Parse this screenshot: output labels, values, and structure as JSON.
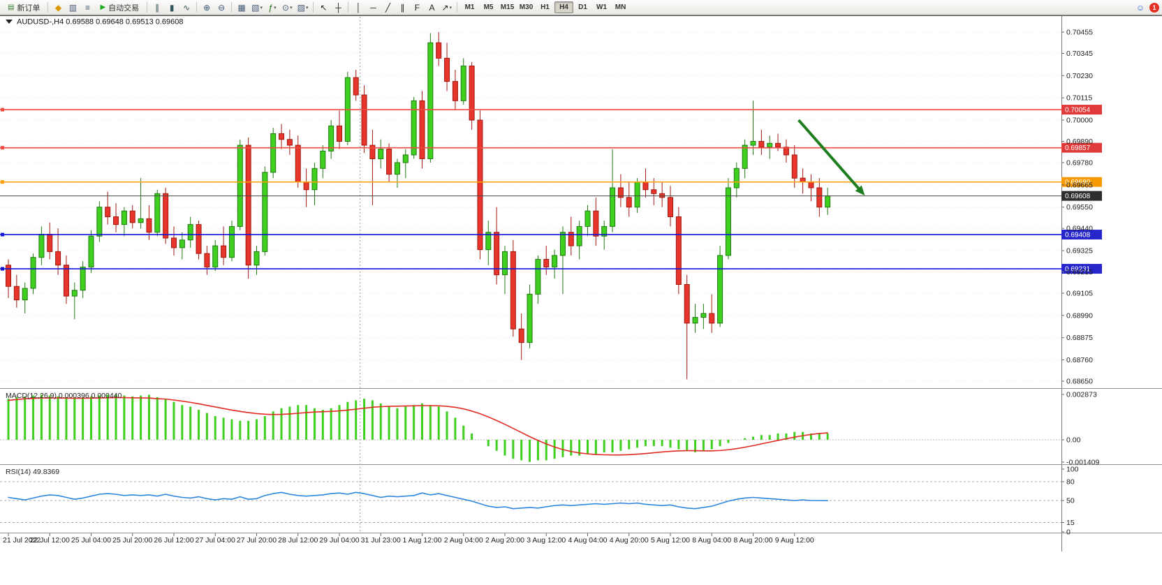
{
  "toolbar": {
    "new_order_label": "新订单",
    "auto_trading_label": "自动交易",
    "timeframes": [
      "M1",
      "M5",
      "M15",
      "M30",
      "H1",
      "H4",
      "D1",
      "W1",
      "MN"
    ],
    "active_timeframe": "H4",
    "notification_count": "1",
    "items": [
      {
        "kind": "button",
        "name": "new-order-button",
        "glyph": "▤",
        "glyph_color": "#2f7d32",
        "label_key": "new_order_label"
      },
      {
        "kind": "sep"
      },
      {
        "kind": "icon",
        "name": "metaeditor-icon",
        "glyph": "◆",
        "glyph_color": "#d99700"
      },
      {
        "kind": "icon",
        "name": "data-window-icon",
        "glyph": "▥",
        "glyph_color": "#445a7a"
      },
      {
        "kind": "icon",
        "name": "navigator-icon",
        "glyph": "≡",
        "glyph_color": "#445a7a"
      },
      {
        "kind": "button",
        "name": "auto-trading-button",
        "glyph": "▶",
        "glyph_color": "#1faa1f",
        "label_key": "auto_trading_label"
      },
      {
        "kind": "sep"
      },
      {
        "kind": "icon",
        "name": "bar-chart-icon",
        "glyph": "∥",
        "glyph_color": "#33555f"
      },
      {
        "kind": "icon",
        "name": "candlestick-chart-icon",
        "glyph": "▮",
        "glyph_color": "#33555f"
      },
      {
        "kind": "icon",
        "name": "line-chart-icon",
        "glyph": "∿",
        "glyph_color": "#33555f"
      },
      {
        "kind": "sep"
      },
      {
        "kind": "icon",
        "name": "zoom-in-icon",
        "glyph": "⊕",
        "glyph_color": "#34567a"
      },
      {
        "kind": "icon",
        "name": "zoom-out-icon",
        "glyph": "⊖",
        "glyph_color": "#34567a"
      },
      {
        "kind": "sep"
      },
      {
        "kind": "icon",
        "name": "tile-windows-icon",
        "glyph": "▦",
        "glyph_color": "#445a7a"
      },
      {
        "kind": "icon",
        "name": "new-chart-icon",
        "glyph": "▧",
        "caret": true,
        "glyph_color": "#445a7a"
      },
      {
        "kind": "icon",
        "name": "indicators-icon",
        "glyph": "ƒ",
        "caret": true,
        "glyph_color": "#156915"
      },
      {
        "kind": "icon",
        "name": "periods-icon",
        "glyph": "⊙",
        "caret": true,
        "glyph_color": "#445a7a"
      },
      {
        "kind": "icon",
        "name": "templates-icon",
        "glyph": "▨",
        "caret": true,
        "glyph_color": "#445a7a"
      },
      {
        "kind": "sep"
      },
      {
        "kind": "icon",
        "name": "cursor-icon",
        "glyph": "↖",
        "glyph_color": "#222222"
      },
      {
        "kind": "icon",
        "name": "crosshair-icon",
        "glyph": "┼",
        "glyph_color": "#222222"
      },
      {
        "kind": "sep"
      },
      {
        "kind": "icon",
        "name": "vertical-line-icon",
        "glyph": "│",
        "glyph_color": "#222222"
      },
      {
        "kind": "icon",
        "name": "horizontal-line-icon",
        "glyph": "─",
        "glyph_color": "#222222"
      },
      {
        "kind": "icon",
        "name": "trendline-icon",
        "glyph": "╱",
        "glyph_color": "#222222"
      },
      {
        "kind": "icon",
        "name": "channel-icon",
        "glyph": "∥",
        "glyph_color": "#222222"
      },
      {
        "kind": "icon",
        "name": "fibonacci-icon",
        "glyph": "F",
        "glyph_color": "#222222"
      },
      {
        "kind": "icon",
        "name": "text-icon",
        "glyph": "A",
        "glyph_color": "#222222"
      },
      {
        "kind": "icon",
        "name": "arrows-icon",
        "glyph": "↗",
        "caret": true,
        "glyph_color": "#222222"
      },
      {
        "kind": "sep"
      },
      {
        "kind": "tf-group"
      },
      {
        "kind": "spacer"
      },
      {
        "kind": "icon",
        "name": "community-icon",
        "glyph": "☺",
        "glyph_color": "#2a6fd1"
      },
      {
        "kind": "badge",
        "name": "notification-badge"
      }
    ]
  },
  "header": {
    "symbol_period": "AUDUSD-,H4",
    "open": "0.69588",
    "high": "0.69648",
    "low": "0.69513",
    "close": "0.69608"
  },
  "price_scale": [
    "0.70455",
    "0.70345",
    "0.70230",
    "0.70115",
    "0.70000",
    "0.69890",
    "0.69780",
    "0.69665",
    "0.69550",
    "0.69440",
    "0.69325",
    "0.69215",
    "0.69105",
    "0.68990",
    "0.68875",
    "0.68760",
    "0.68650"
  ],
  "time_scale": [
    "21 Jul 2022",
    "22 Jul 12:00",
    "25 Jul 04:00",
    "25 Jul 20:00",
    "26 Jul 12:00",
    "27 Jul 04:00",
    "27 Jul 20:00",
    "28 Jul 12:00",
    "29 Jul 04:00",
    "31 Jul 23:00",
    "1 Aug 12:00",
    "2 Aug 04:00",
    "2 Aug 20:00",
    "3 Aug 12:00",
    "4 Aug 04:00",
    "4 Aug 20:00",
    "5 Aug 12:00",
    "8 Aug 04:00",
    "8 Aug 20:00",
    "9 Aug 12:00"
  ],
  "levels": [
    {
      "price": 0.70054,
      "label": "0.70054",
      "line": "#f14a42",
      "badge": "#e03a3a",
      "name": "resistance-line-1"
    },
    {
      "price": 0.69857,
      "label": "0.69857",
      "line": "#f14a42",
      "badge": "#e03a3a",
      "name": "resistance-line-2"
    },
    {
      "price": 0.6968,
      "label": "0.69680",
      "line": "#ffa000",
      "badge": "#f59a00",
      "name": "pivot-line"
    },
    {
      "price": 0.69408,
      "label": "0.69408",
      "line": "#1414d8",
      "badge": "#2626cc",
      "name": "support-line-1"
    },
    {
      "price": 0.69231,
      "label": "0.69231",
      "line": "#1414d8",
      "badge": "#2626cc",
      "name": "support-line-2"
    }
  ],
  "current_price": {
    "value": 0.69608,
    "label": "0.69608",
    "line": "#444444",
    "badge": "#2e2e2e"
  },
  "indicators": {
    "macd": {
      "title": "MACD(12,26,9)",
      "value_main": "0.000396",
      "value_signal": "0.000440",
      "scale": [
        "0.002873",
        "0.00",
        "-0.001409"
      ]
    },
    "rsi": {
      "title": "RSI(14)",
      "value": "49.8369",
      "scale": [
        "100",
        "80",
        "50",
        "15",
        "0"
      ],
      "levels": [
        80,
        50,
        15
      ]
    }
  },
  "annotations": {
    "trend_arrow": {
      "color": "#1e7d1e",
      "from_index": 95.5,
      "from_price": 0.7,
      "to_index": 103.5,
      "to_price": 0.6961
    }
  },
  "theme": {
    "bull": "#3fcf1f",
    "bull_edge": "#1f7a10",
    "bear": "#e8352b",
    "bear_edge": "#a01810",
    "macd_hist": "#3fcf1f",
    "macd_signal": "#e02a20",
    "rsi_line": "#2e86de",
    "grid": "#ececec",
    "scale_text": "#1c1c1c",
    "panel_border": "#909090",
    "day_separator": "#9a9a9a"
  },
  "chart_data": {
    "type": "candlestick",
    "symbol": "AUDUSD",
    "timeframe": "H4",
    "title": "AUDUSD-,H4 0.69588 0.69648 0.69513 0.69608",
    "y_axis_range": [
      0.68614,
      0.70534
    ],
    "grid": true,
    "day_separator_index": 42.5,
    "time_labels_every": 5,
    "candles": [
      [
        0.6925,
        0.6928,
        0.6908,
        0.6914
      ],
      [
        0.6914,
        0.692,
        0.6903,
        0.6907
      ],
      [
        0.6907,
        0.6916,
        0.69,
        0.6913
      ],
      [
        0.6913,
        0.6931,
        0.691,
        0.6929
      ],
      [
        0.6929,
        0.6945,
        0.6925,
        0.6941
      ],
      [
        0.6941,
        0.6947,
        0.6928,
        0.6932
      ],
      [
        0.6932,
        0.6944,
        0.692,
        0.6925
      ],
      [
        0.6925,
        0.693,
        0.6905,
        0.6909
      ],
      [
        0.6909,
        0.6916,
        0.6897,
        0.6912
      ],
      [
        0.6912,
        0.6927,
        0.6908,
        0.6924
      ],
      [
        0.6924,
        0.6943,
        0.6921,
        0.694
      ],
      [
        0.694,
        0.6958,
        0.6937,
        0.6955
      ],
      [
        0.6955,
        0.6963,
        0.6946,
        0.695
      ],
      [
        0.695,
        0.6957,
        0.6942,
        0.6946
      ],
      [
        0.6946,
        0.6955,
        0.694,
        0.6953
      ],
      [
        0.6953,
        0.6956,
        0.6944,
        0.6947
      ],
      [
        0.6947,
        0.697,
        0.6944,
        0.6949
      ],
      [
        0.6949,
        0.6956,
        0.6938,
        0.6942
      ],
      [
        0.6942,
        0.6964,
        0.694,
        0.6962
      ],
      [
        0.6962,
        0.6965,
        0.6936,
        0.6939
      ],
      [
        0.6939,
        0.6945,
        0.693,
        0.6934
      ],
      [
        0.6934,
        0.6942,
        0.6928,
        0.6938
      ],
      [
        0.6938,
        0.695,
        0.6934,
        0.6946
      ],
      [
        0.6946,
        0.6948,
        0.6928,
        0.6931
      ],
      [
        0.6931,
        0.6935,
        0.692,
        0.6924
      ],
      [
        0.6924,
        0.6938,
        0.6922,
        0.6935
      ],
      [
        0.6935,
        0.6945,
        0.6925,
        0.6929
      ],
      [
        0.6929,
        0.6948,
        0.6927,
        0.6945
      ],
      [
        0.6945,
        0.699,
        0.6943,
        0.6987
      ],
      [
        0.6987,
        0.6991,
        0.6918,
        0.6925
      ],
      [
        0.6925,
        0.6935,
        0.692,
        0.6932
      ],
      [
        0.6932,
        0.6976,
        0.693,
        0.6973
      ],
      [
        0.6973,
        0.6996,
        0.697,
        0.6993
      ],
      [
        0.6993,
        0.6998,
        0.6985,
        0.699
      ],
      [
        0.699,
        0.6995,
        0.6982,
        0.6987
      ],
      [
        0.6987,
        0.6992,
        0.6965,
        0.6968
      ],
      [
        0.6968,
        0.6975,
        0.6955,
        0.6964
      ],
      [
        0.6964,
        0.6978,
        0.6956,
        0.6975
      ],
      [
        0.6975,
        0.6987,
        0.697,
        0.6984
      ],
      [
        0.6984,
        0.7,
        0.698,
        0.6997
      ],
      [
        0.6997,
        0.7005,
        0.6985,
        0.6989
      ],
      [
        0.6989,
        0.7025,
        0.6987,
        0.7022
      ],
      [
        0.7022,
        0.7026,
        0.701,
        0.7013
      ],
      [
        0.7013,
        0.7018,
        0.6983,
        0.6987
      ],
      [
        0.6987,
        0.6995,
        0.6956,
        0.698
      ],
      [
        0.698,
        0.699,
        0.6975,
        0.6985
      ],
      [
        0.6985,
        0.6988,
        0.6968,
        0.6972
      ],
      [
        0.6972,
        0.698,
        0.6965,
        0.6978
      ],
      [
        0.6978,
        0.6985,
        0.697,
        0.6982
      ],
      [
        0.6982,
        0.7012,
        0.698,
        0.701
      ],
      [
        0.701,
        0.7015,
        0.6975,
        0.698
      ],
      [
        0.698,
        0.7045,
        0.6978,
        0.704
      ],
      [
        0.704,
        0.70455,
        0.7028,
        0.7032
      ],
      [
        0.7032,
        0.704,
        0.7015,
        0.702
      ],
      [
        0.702,
        0.7026,
        0.7005,
        0.701
      ],
      [
        0.701,
        0.7032,
        0.7008,
        0.7028
      ],
      [
        0.7028,
        0.703,
        0.6995,
        0.7
      ],
      [
        0.7,
        0.7005,
        0.6928,
        0.6933
      ],
      [
        0.6933,
        0.6948,
        0.6925,
        0.6942
      ],
      [
        0.6942,
        0.6955,
        0.6915,
        0.692
      ],
      [
        0.692,
        0.6935,
        0.691,
        0.6932
      ],
      [
        0.6932,
        0.6938,
        0.6888,
        0.6892
      ],
      [
        0.6892,
        0.69,
        0.6876,
        0.6885
      ],
      [
        0.6885,
        0.6915,
        0.6882,
        0.691
      ],
      [
        0.691,
        0.693,
        0.6905,
        0.6928
      ],
      [
        0.6928,
        0.6935,
        0.692,
        0.6924
      ],
      [
        0.6924,
        0.6933,
        0.6918,
        0.693
      ],
      [
        0.693,
        0.6945,
        0.691,
        0.6942
      ],
      [
        0.6942,
        0.695,
        0.693,
        0.6935
      ],
      [
        0.6935,
        0.6948,
        0.6928,
        0.6945
      ],
      [
        0.6945,
        0.6956,
        0.694,
        0.6953
      ],
      [
        0.6953,
        0.696,
        0.6935,
        0.694
      ],
      [
        0.694,
        0.6948,
        0.6933,
        0.6945
      ],
      [
        0.6945,
        0.6985,
        0.6942,
        0.6965
      ],
      [
        0.6965,
        0.6972,
        0.6955,
        0.696
      ],
      [
        0.696,
        0.6968,
        0.695,
        0.6955
      ],
      [
        0.6955,
        0.697,
        0.6952,
        0.6968
      ],
      [
        0.6968,
        0.6975,
        0.696,
        0.6964
      ],
      [
        0.6964,
        0.697,
        0.6956,
        0.6962
      ],
      [
        0.6962,
        0.6968,
        0.6955,
        0.696
      ],
      [
        0.696,
        0.6966,
        0.6945,
        0.695
      ],
      [
        0.695,
        0.6955,
        0.691,
        0.6915
      ],
      [
        0.6915,
        0.692,
        0.6866,
        0.6895
      ],
      [
        0.6895,
        0.6905,
        0.689,
        0.6898
      ],
      [
        0.6898,
        0.6905,
        0.6892,
        0.69
      ],
      [
        0.69,
        0.691,
        0.689,
        0.6895
      ],
      [
        0.6895,
        0.6935,
        0.6893,
        0.693
      ],
      [
        0.693,
        0.697,
        0.6928,
        0.6965
      ],
      [
        0.6965,
        0.6978,
        0.696,
        0.6975
      ],
      [
        0.6975,
        0.699,
        0.697,
        0.6987
      ],
      [
        0.6987,
        0.701,
        0.6982,
        0.6989
      ],
      [
        0.6989,
        0.6995,
        0.6982,
        0.6986
      ],
      [
        0.6986,
        0.6992,
        0.698,
        0.6988
      ],
      [
        0.6988,
        0.6993,
        0.6984,
        0.6986
      ],
      [
        0.6986,
        0.699,
        0.6978,
        0.6982
      ],
      [
        0.6982,
        0.6987,
        0.6965,
        0.697
      ],
      [
        0.697,
        0.6975,
        0.6962,
        0.6968
      ],
      [
        0.6968,
        0.6972,
        0.6958,
        0.6965
      ],
      [
        0.6965,
        0.697,
        0.695,
        0.6955
      ],
      [
        0.6955,
        0.6965,
        0.6951,
        0.69608
      ]
    ],
    "macd": {
      "params": "12,26,9",
      "histogram": [
        0.0026,
        0.0027,
        0.00275,
        0.0028,
        0.00285,
        0.0028,
        0.00275,
        0.0027,
        0.00265,
        0.0027,
        0.00275,
        0.0028,
        0.00285,
        0.00285,
        0.0028,
        0.00275,
        0.0028,
        0.00285,
        0.0027,
        0.0026,
        0.0024,
        0.0022,
        0.0021,
        0.0019,
        0.0017,
        0.0015,
        0.0014,
        0.0013,
        0.0012,
        0.0012,
        0.0013,
        0.0015,
        0.0018,
        0.002,
        0.0021,
        0.0022,
        0.0022,
        0.002,
        0.0019,
        0.002,
        0.0022,
        0.0024,
        0.0025,
        0.0026,
        0.0025,
        0.0023,
        0.0021,
        0.002,
        0.0021,
        0.0022,
        0.0023,
        0.0022,
        0.0021,
        0.0018,
        0.0014,
        0.0009,
        0.0004,
        0.0,
        -0.0004,
        -0.0007,
        -0.001,
        -0.0012,
        -0.0013,
        -0.0014,
        -0.0013,
        -0.0013,
        -0.0012,
        -0.0011,
        -0.001,
        -0.001,
        -0.0009,
        -0.0009,
        -0.0008,
        -0.0008,
        -0.0007,
        -0.0006,
        -0.0005,
        -0.0004,
        -0.0004,
        -0.0004,
        -0.0005,
        -0.0006,
        -0.0007,
        -0.0008,
        -0.0007,
        -0.0006,
        -0.0004,
        -0.0002,
        0.0,
        0.0001,
        0.0002,
        0.0003,
        0.0003,
        0.0004,
        0.0004,
        0.0005,
        0.0005,
        0.0004,
        0.0004,
        0.000396
      ],
      "signal": [
        0.0025,
        0.00255,
        0.0026,
        0.00262,
        0.00265,
        0.00265,
        0.00265,
        0.00264,
        0.00263,
        0.00263,
        0.00264,
        0.00265,
        0.00266,
        0.00267,
        0.00267,
        0.00266,
        0.00265,
        0.00265,
        0.0026,
        0.00258,
        0.00252,
        0.00245,
        0.00237,
        0.00228,
        0.00218,
        0.00208,
        0.00198,
        0.00188,
        0.0018,
        0.00172,
        0.00166,
        0.00162,
        0.0016,
        0.00161,
        0.00164,
        0.00168,
        0.00172,
        0.00176,
        0.00178,
        0.0018,
        0.00183,
        0.00188,
        0.00194,
        0.002,
        0.00206,
        0.0021,
        0.00212,
        0.00213,
        0.00214,
        0.00215,
        0.00216,
        0.00216,
        0.00215,
        0.00212,
        0.00206,
        0.00196,
        0.00182,
        0.00165,
        0.00145,
        0.00122,
        0.00098,
        0.00072,
        0.00046,
        0.0002,
        -4e-05,
        -0.00026,
        -0.00046,
        -0.00062,
        -0.00074,
        -0.00083,
        -0.00089,
        -0.00093,
        -0.00095,
        -0.00096,
        -0.00096,
        -0.00094,
        -0.00091,
        -0.00087,
        -0.00082,
        -0.00077,
        -0.00073,
        -0.0007,
        -0.00069,
        -0.00069,
        -0.0007,
        -0.0007,
        -0.00068,
        -0.00063,
        -0.00056,
        -0.00047,
        -0.00037,
        -0.00026,
        -0.00015,
        -4e-05,
        7e-05,
        0.00017,
        0.00026,
        0.00034,
        0.0004,
        0.00044
      ]
    },
    "rsi": {
      "period": 14,
      "values": [
        55,
        53,
        51,
        54,
        57,
        59,
        58,
        55,
        52,
        54,
        57,
        60,
        61,
        60,
        58,
        59,
        58,
        59,
        57,
        60,
        57,
        55,
        54,
        56,
        53,
        51,
        53,
        52,
        56,
        52,
        53,
        58,
        61,
        63,
        60,
        58,
        57,
        58,
        59,
        61,
        62,
        60,
        63,
        61,
        58,
        55,
        57,
        56,
        57,
        58,
        62,
        59,
        61,
        58,
        55,
        52,
        49,
        45,
        41,
        39,
        40,
        37,
        38,
        39,
        38,
        40,
        42,
        43,
        42,
        43,
        44,
        45,
        44,
        45,
        46,
        45,
        46,
        44,
        43,
        42,
        43,
        40,
        38,
        37,
        39,
        41,
        45,
        49,
        52,
        54,
        55,
        54,
        53,
        52,
        51,
        50,
        51,
        50,
        50,
        49.84
      ]
    },
    "hlines": [
      0.70054,
      0.69857,
      0.6968,
      0.69608,
      0.69408,
      0.69231
    ]
  }
}
